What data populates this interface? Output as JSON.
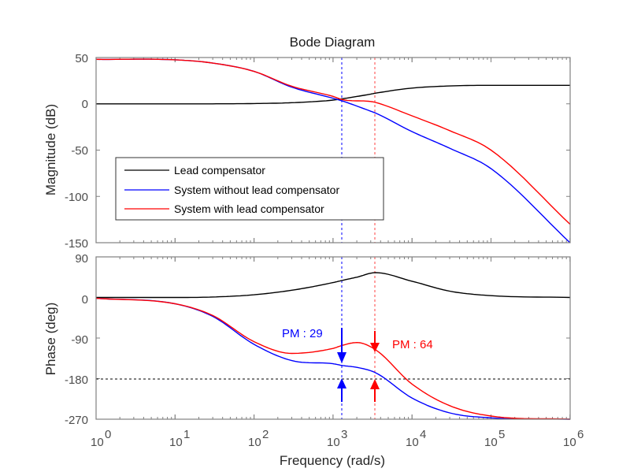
{
  "chart_data": {
    "type": "line",
    "title": "Bode Diagram",
    "xlabel": "Frequency  (rad/s)",
    "xscale": "log",
    "xlim": [
      1,
      1000000
    ],
    "x_ticks": [
      "10^0",
      "10^1",
      "10^2",
      "10^3",
      "10^4",
      "10^5",
      "10^6"
    ],
    "legend": {
      "position": "inside-lower-left of magnitude panel",
      "entries": [
        {
          "label": "Lead compensator",
          "color": "#000000"
        },
        {
          "label": "System without lead compensator",
          "color": "#0000ff"
        },
        {
          "label": "System with lead compensator",
          "color": "#ff0000"
        }
      ]
    },
    "panels": [
      {
        "name": "magnitude",
        "ylabel": "Magnitude (dB)",
        "ylim": [
          -150,
          50
        ],
        "y_ticks": [
          50,
          0,
          -50,
          -100,
          -150
        ],
        "x": [
          1,
          10,
          30,
          100,
          300,
          1000,
          1320,
          3000,
          3460,
          10000,
          30000,
          100000,
          1000000
        ],
        "series": [
          {
            "name": "Lead compensator",
            "color": "#000000",
            "values": [
              0,
              0,
              0,
              0.3,
              1.2,
              4,
              5.5,
              10.5,
              11.5,
              17,
              19.3,
              20,
              20
            ]
          },
          {
            "name": "System without lead compensator",
            "color": "#0000ff",
            "values": [
              48,
              47.5,
              44,
              35,
              18,
              6,
              3,
              -8,
              -10,
              -30,
              -48,
              -70,
              -150
            ]
          },
          {
            "name": "System with lead compensator",
            "color": "#ff0000",
            "values": [
              48,
              47.5,
              44,
              35,
              19,
              8,
              4.5,
              2.5,
              1.5,
              -13,
              -29,
              -50,
              -130
            ]
          }
        ]
      },
      {
        "name": "phase",
        "ylabel": "Phase (deg)",
        "ylim": [
          -270,
          90
        ],
        "y_ticks": [
          90,
          0,
          -90,
          -180,
          -270
        ],
        "reference_line": -180,
        "x": [
          1,
          10,
          30,
          100,
          300,
          1000,
          1320,
          2000,
          3460,
          10000,
          30000,
          100000,
          1000000
        ],
        "series": [
          {
            "name": "Lead compensator",
            "color": "#000000",
            "values": [
              0,
              0,
              1,
              6,
              16,
              33,
              38,
              45,
              55,
              36,
              14,
              4,
              0
            ]
          },
          {
            "name": "System without lead compensator",
            "color": "#0000ff",
            "values": [
              -2,
              -14,
              -42,
              -104,
              -140,
              -147,
              -151,
              -155,
              -167,
              -223,
              -256,
              -267,
              -270
            ]
          },
          {
            "name": "System with lead compensator",
            "color": "#ff0000",
            "values": [
              -2,
              -14,
              -40,
              -98,
              -124,
              -113,
              -106,
              -100,
              -116,
              -192,
              -240,
              -263,
              -270
            ]
          }
        ]
      }
    ],
    "annotations": [
      {
        "text": "PM : 29",
        "color": "#0000ff",
        "crossover_freq": 1320,
        "phase_margin_deg": 29
      },
      {
        "text": "PM : 64",
        "color": "#ff0000",
        "crossover_freq": 3460,
        "phase_margin_deg": 64
      }
    ]
  },
  "labels": {
    "title": "Bode Diagram",
    "xlabel": "Frequency  (rad/s)",
    "mag_ylabel": "Magnitude (dB)",
    "phase_ylabel": "Phase (deg)",
    "legend_0": "Lead compensator",
    "legend_1": "System without lead compensator",
    "legend_2": "System with lead compensator",
    "pm_blue": "PM : 29",
    "pm_red": "PM : 64",
    "mag_ticks": [
      "50",
      "0",
      "-50",
      "-100",
      "-150"
    ],
    "phase_ticks": [
      "90",
      "0",
      "-90",
      "-180",
      "-270"
    ],
    "x_tick_exp": [
      "0",
      "1",
      "2",
      "3",
      "4",
      "5",
      "6"
    ]
  }
}
